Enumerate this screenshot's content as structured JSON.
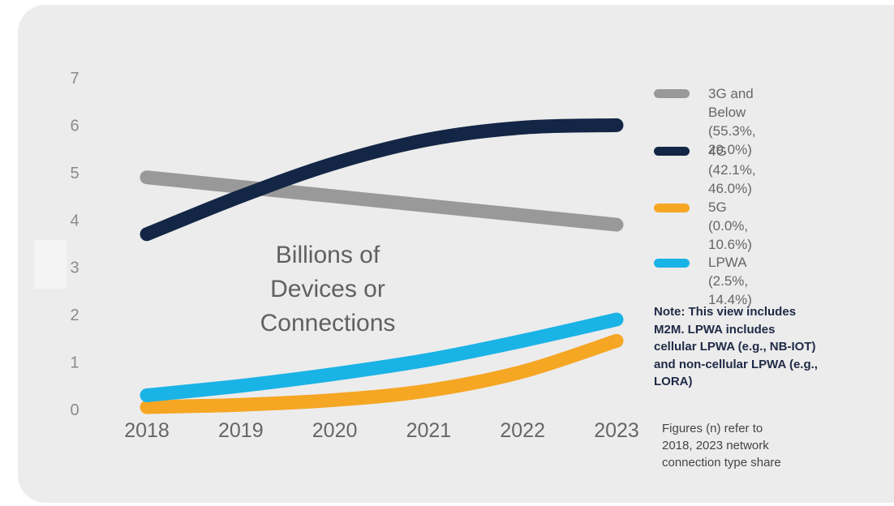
{
  "chart_data": {
    "type": "line",
    "categories": [
      "2018",
      "2019",
      "2020",
      "2021",
      "2022",
      "2023"
    ],
    "yticks": [
      "0",
      "1",
      "2",
      "3",
      "4",
      "5",
      "6",
      "7"
    ],
    "ylim": [
      0,
      7
    ],
    "overlay_label": [
      "Billions of",
      "Devices or",
      "Connections"
    ],
    "series": [
      {
        "name": "3G and Below",
        "shares": "(55.3%, 29.0%)",
        "color": "#999999",
        "values": [
          4.9,
          4.7,
          4.5,
          4.3,
          4.1,
          3.9
        ]
      },
      {
        "name": "4G",
        "shares": "(42.1%, 46.0%)",
        "color": "#142645",
        "values": [
          3.7,
          4.5,
          5.2,
          5.7,
          5.95,
          6.0
        ]
      },
      {
        "name": "5G",
        "shares": "(0.0%, 10.6%)",
        "color": "#f5a623",
        "values": [
          0.05,
          0.1,
          0.2,
          0.4,
          0.8,
          1.45
        ]
      },
      {
        "name": "LPWA",
        "shares": "(2.5%, 14.4%)",
        "color": "#1ab3e6",
        "values": [
          0.3,
          0.5,
          0.75,
          1.05,
          1.45,
          1.9
        ]
      }
    ],
    "grid": false,
    "legend_position": "right"
  },
  "legend": [
    {
      "text": "3G and Below\n(55.3%, 29.0%)"
    },
    {
      "text": "4G (42.1%, 46.0%)"
    },
    {
      "text": "5G (0.0%, 10.6%)"
    },
    {
      "text": "LPWA (2.5%, 14.4%)"
    }
  ],
  "note": "Note: This view includes\nM2M.  LPWA includes\ncellular LPWA (e.g., NB-IOT)\nand non-cellular LPWA (e.g.,\nLORA)",
  "figures_note": "Figures (n) refer to\n2018, 2023 network\nconnection type share"
}
